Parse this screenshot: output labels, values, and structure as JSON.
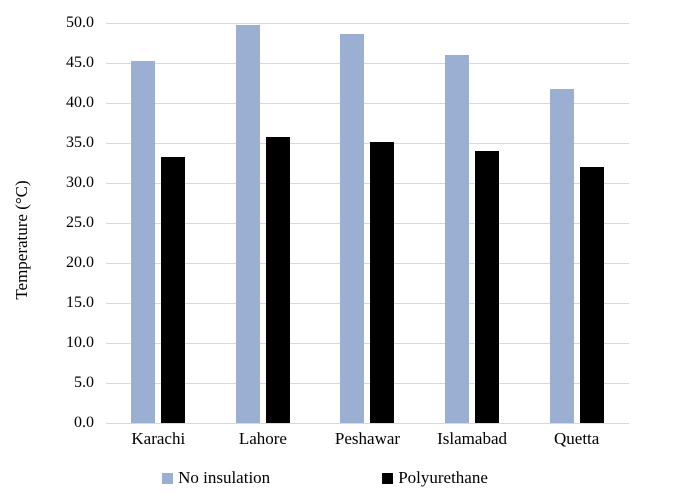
{
  "chart_data": {
    "type": "bar",
    "title": "",
    "categories": [
      "Karachi",
      "Lahore",
      "Peshawar",
      "Islamabad",
      "Quetta"
    ],
    "series": [
      {
        "name": "No insulation",
        "color": "#9BAFD3",
        "values": [
          45.2,
          49.8,
          48.6,
          46.0,
          41.7
        ]
      },
      {
        "name": "Polyurethane",
        "color": "#000000",
        "values": [
          33.3,
          35.8,
          35.1,
          34.0,
          32.0
        ]
      }
    ],
    "xlabel": "",
    "ylabel": "Temperature (°C)",
    "ylim": [
      0,
      50
    ],
    "ytick_step": 5,
    "ytick_labels": [
      "0.0",
      "5.0",
      "10.0",
      "15.0",
      "20.0",
      "25.0",
      "30.0",
      "35.0",
      "40.0",
      "45.0",
      "50.0"
    ],
    "grid": "horizontal",
    "gridline_color": "#D9D9D9",
    "axis_line_color": "#D9D9D9",
    "legend_position": "bottom",
    "background": "#FFFFFF"
  }
}
